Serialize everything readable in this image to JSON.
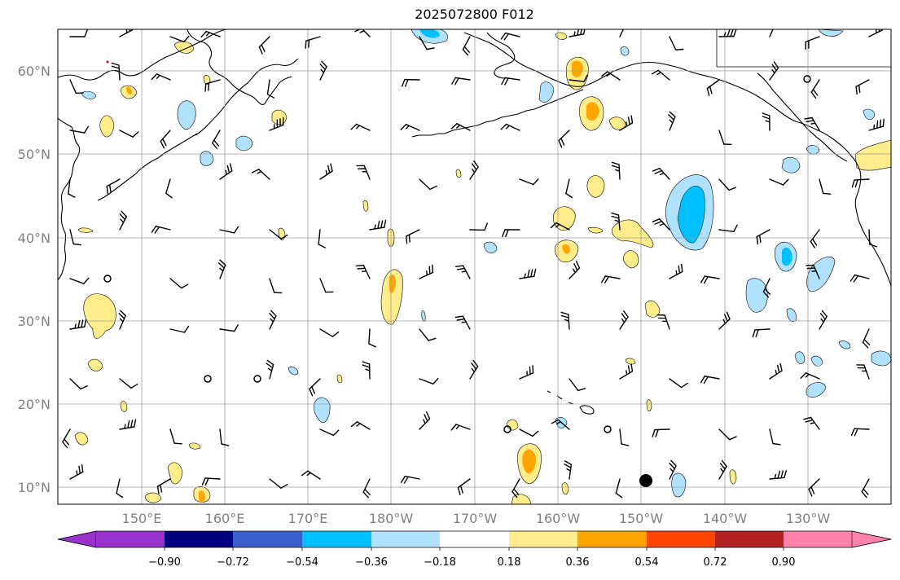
{
  "title": "2025072800 F012",
  "lat_labels": [
    "10°N",
    "20°N",
    "30°N",
    "40°N",
    "50°N",
    "60°N"
  ],
  "lon_labels": [
    "150°E",
    "160°E",
    "170°E",
    "180°W",
    "170°W",
    "160°W",
    "150°W",
    "140°W",
    "130°W"
  ],
  "colorbar": {
    "ticks": [
      "−0.90",
      "−0.72",
      "−0.54",
      "−0.36",
      "−0.18",
      "0.18",
      "0.36",
      "0.54",
      "0.72",
      "0.90"
    ],
    "colors": [
      "#9932CC",
      "#000080",
      "#3A5FCD",
      "#00BFFF",
      "#B0E2FF",
      "#FFFFFF",
      "#FFEC8B",
      "#FFA500",
      "#FF4500",
      "#B22222",
      "#FF82AB"
    ]
  },
  "colors": {
    "gridline": "#9e9e9e",
    "coastline": "#000000",
    "barb": "#000000"
  }
}
